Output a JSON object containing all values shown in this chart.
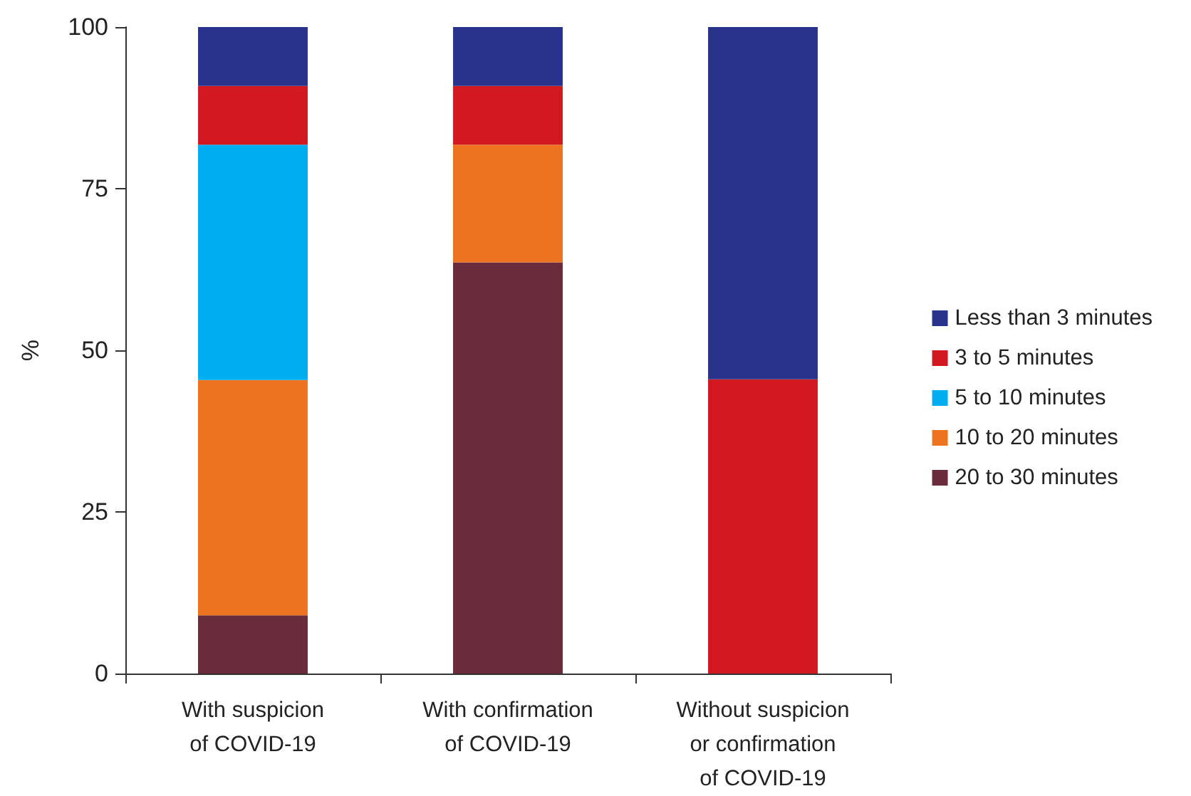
{
  "chart_data": {
    "type": "bar",
    "stacked": true,
    "ylabel": "%",
    "categories": [
      "With suspicion\nof COVID-19",
      "With confirmation\nof COVID-19",
      "Without suspicion\nor confirmation\nof COVID-19"
    ],
    "series": [
      {
        "name": "20 to 30 minutes",
        "color": "#6a2c3a",
        "values": [
          9,
          63.6,
          0
        ]
      },
      {
        "name": "10 to 20 minutes",
        "color": "#ee7320",
        "values": [
          36.4,
          18.2,
          0
        ]
      },
      {
        "name": "5 to 10 minutes",
        "color": "#00aeef",
        "values": [
          36.4,
          0,
          0
        ]
      },
      {
        "name": "3 to 5 minutes",
        "color": "#d2191f",
        "values": [
          9.1,
          9.1,
          45.5
        ]
      },
      {
        "name": "Less than 3 minutes",
        "color": "#28348b",
        "values": [
          9.1,
          9.1,
          54.5
        ]
      }
    ],
    "ylim": [
      0,
      100
    ],
    "yticks": [
      0,
      25,
      50,
      75,
      100
    ],
    "grid": false,
    "legend": "right"
  }
}
